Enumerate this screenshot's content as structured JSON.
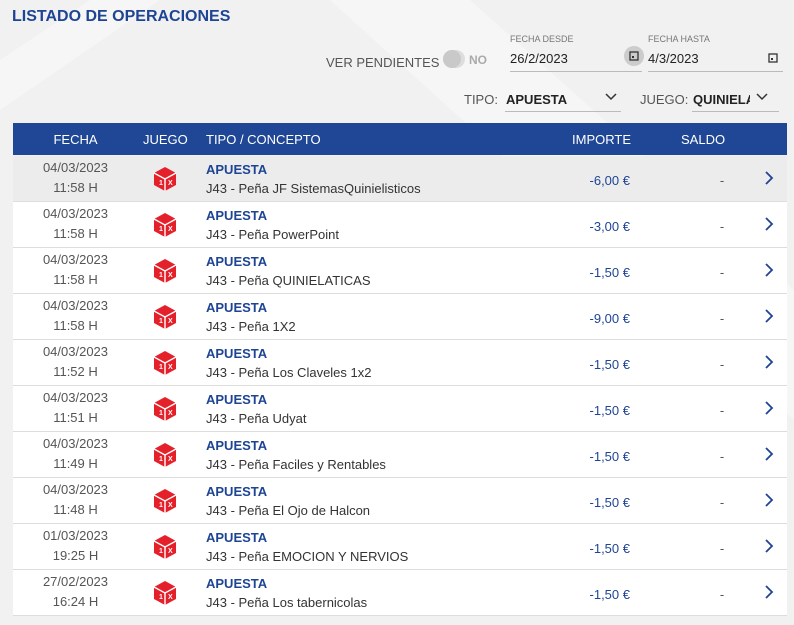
{
  "header": {
    "title": "LISTADO DE OPERACIONES"
  },
  "filters": {
    "ver_pendientes": {
      "label": "VER PENDIENTES",
      "value": "NO"
    },
    "fecha_desde": {
      "label": "FECHA DESDE",
      "value": "26/2/2023"
    },
    "fecha_hasta": {
      "label": "FECHA HASTA",
      "value": "4/3/2023"
    },
    "tipo": {
      "label": "TIPO:",
      "value": "APUESTA"
    },
    "juego": {
      "label": "JUEGO:",
      "value": "QUINIELA"
    }
  },
  "table": {
    "columns": [
      "FECHA",
      "JUEGO",
      "TIPO / CONCEPTO",
      "IMPORTE",
      "SALDO"
    ],
    "rows": [
      {
        "fecha": "04/03/2023",
        "hora": "11:58 H",
        "tipo": "APUESTA",
        "concepto": "J43 - Peña JF SistemasQuinielisticos",
        "importe": "-6,00 €",
        "saldo": "-"
      },
      {
        "fecha": "04/03/2023",
        "hora": "11:58 H",
        "tipo": "APUESTA",
        "concepto": "J43 - Peña PowerPoint",
        "importe": "-3,00 €",
        "saldo": "-"
      },
      {
        "fecha": "04/03/2023",
        "hora": "11:58 H",
        "tipo": "APUESTA",
        "concepto": "J43 - Peña QUINIELATICAS",
        "importe": "-1,50 €",
        "saldo": "-"
      },
      {
        "fecha": "04/03/2023",
        "hora": "11:58 H",
        "tipo": "APUESTA",
        "concepto": "J43 - Peña 1X2",
        "importe": "-9,00 €",
        "saldo": "-"
      },
      {
        "fecha": "04/03/2023",
        "hora": "11:52 H",
        "tipo": "APUESTA",
        "concepto": "J43 - Peña Los Claveles 1x2",
        "importe": "-1,50 €",
        "saldo": "-"
      },
      {
        "fecha": "04/03/2023",
        "hora": "11:51 H",
        "tipo": "APUESTA",
        "concepto": "J43 - Peña Udyat",
        "importe": "-1,50 €",
        "saldo": "-"
      },
      {
        "fecha": "04/03/2023",
        "hora": "11:49 H",
        "tipo": "APUESTA",
        "concepto": "J43 - Peña Faciles y Rentables",
        "importe": "-1,50 €",
        "saldo": "-"
      },
      {
        "fecha": "04/03/2023",
        "hora": "11:48 H",
        "tipo": "APUESTA",
        "concepto": "J43 - Peña El Ojo de Halcon",
        "importe": "-1,50 €",
        "saldo": "-"
      },
      {
        "fecha": "01/03/2023",
        "hora": "19:25 H",
        "tipo": "APUESTA",
        "concepto": "J43 - Peña EMOCION Y NERVIOS",
        "importe": "-1,50 €",
        "saldo": "-"
      },
      {
        "fecha": "27/02/2023",
        "hora": "16:24 H",
        "tipo": "APUESTA",
        "concepto": "J43 - Peña Los tabernicolas",
        "importe": "-1,50 €",
        "saldo": "-"
      }
    ]
  }
}
